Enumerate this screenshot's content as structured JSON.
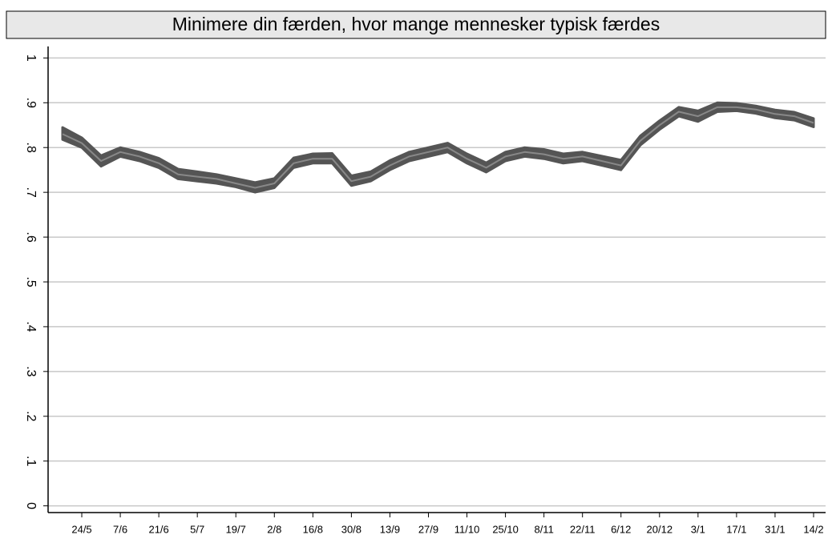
{
  "chart_data": {
    "type": "line",
    "title": "Minimere din færden, hvor mange mennesker typisk færdes",
    "categories": [
      null,
      "24/5",
      null,
      "7/6",
      null,
      "21/6",
      null,
      "5/7",
      null,
      "19/7",
      null,
      "2/8",
      null,
      "16/8",
      null,
      "30/8",
      null,
      "13/9",
      null,
      "27/9",
      null,
      "11/10",
      null,
      "25/10",
      null,
      "8/11",
      null,
      "22/11",
      null,
      "6/12",
      null,
      "20/12",
      null,
      "3/1",
      null,
      "17/1",
      null,
      "31/1",
      null,
      "14/2"
    ],
    "values": [
      0.83,
      0.81,
      0.77,
      0.79,
      0.78,
      0.765,
      0.74,
      0.735,
      0.73,
      0.72,
      0.71,
      0.72,
      0.765,
      0.775,
      0.775,
      0.725,
      0.735,
      0.76,
      0.78,
      0.79,
      0.8,
      0.775,
      0.755,
      0.78,
      0.79,
      0.785,
      0.775,
      0.78,
      0.77,
      0.76,
      0.815,
      0.85,
      0.88,
      0.87,
      0.89,
      0.89,
      0.885,
      0.875,
      0.87,
      0.855
    ],
    "lower": [
      0.818,
      0.8,
      0.758,
      0.78,
      0.77,
      0.755,
      0.73,
      0.725,
      0.72,
      0.712,
      0.7,
      0.71,
      0.755,
      0.765,
      0.765,
      0.715,
      0.725,
      0.75,
      0.77,
      0.78,
      0.79,
      0.765,
      0.745,
      0.77,
      0.78,
      0.775,
      0.765,
      0.77,
      0.76,
      0.75,
      0.805,
      0.84,
      0.87,
      0.858,
      0.88,
      0.882,
      0.876,
      0.866,
      0.861,
      0.846
    ],
    "upper": [
      0.845,
      0.822,
      0.782,
      0.8,
      0.79,
      0.776,
      0.752,
      0.746,
      0.74,
      0.731,
      0.722,
      0.731,
      0.777,
      0.786,
      0.787,
      0.737,
      0.746,
      0.771,
      0.79,
      0.8,
      0.81,
      0.786,
      0.766,
      0.79,
      0.8,
      0.796,
      0.786,
      0.79,
      0.781,
      0.772,
      0.826,
      0.86,
      0.89,
      0.882,
      0.9,
      0.899,
      0.893,
      0.884,
      0.879,
      0.865
    ],
    "color": "#555555",
    "ylim": [
      -0.015,
      1.04
    ],
    "yticks": [
      0,
      {
        "value": 0.1,
        "label": ".1"
      },
      {
        "value": 0.2,
        "label": ".2"
      },
      {
        "value": 0.3,
        "label": ".3"
      },
      {
        "value": 0.4,
        "label": ".4"
      },
      {
        "value": 0.5,
        "label": ".5"
      },
      {
        "value": 0.6,
        "label": ".6"
      },
      {
        "value": 0.7,
        "label": ".7"
      },
      {
        "value": 0.8,
        "label": ".8"
      },
      {
        "value": 0.9,
        "label": ".9"
      },
      1
    ],
    "grid": true
  }
}
